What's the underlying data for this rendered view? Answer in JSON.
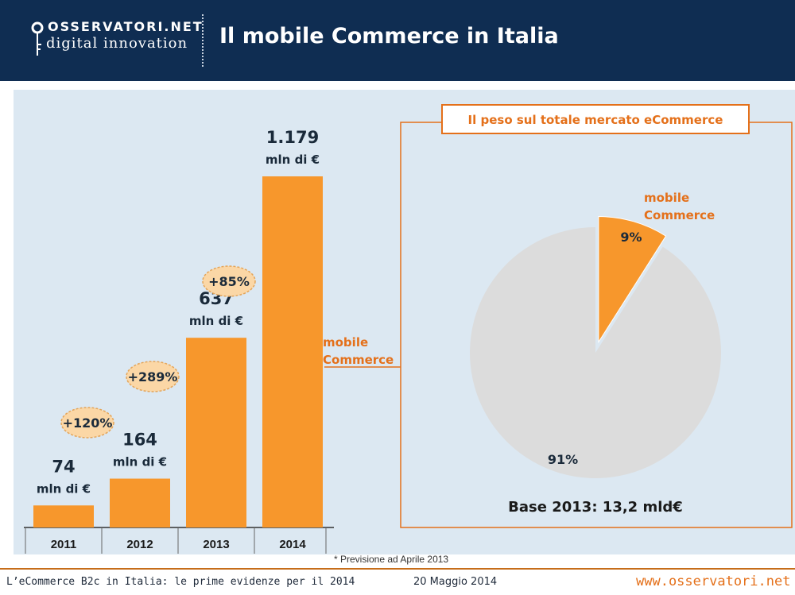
{
  "header": {
    "logo_top": "OSSERVATORI.NET",
    "logo_bottom": "digital innovation",
    "title": "Il mobile Commerce in Italia"
  },
  "colors": {
    "header_bg": "#0f2d52",
    "panel_bg": "#dce8f2",
    "bar": "#f7972c",
    "pie_main": "#dcdcdc",
    "accent": "#e4701a",
    "growth_bubble": "#fbd7a6"
  },
  "chart_data": [
    {
      "type": "bar",
      "categories": [
        "2011",
        "2012",
        "2013",
        "2014"
      ],
      "values": [
        74,
        164,
        637,
        1179
      ],
      "value_labels": [
        "74",
        "164",
        "637",
        "1.179"
      ],
      "unit_label": "mln di €",
      "growth_labels": [
        "+120%",
        "+289%",
        "+85%"
      ],
      "series_label": "mobile Commerce",
      "ylim": [
        0,
        1179
      ]
    },
    {
      "type": "pie",
      "title": "Il peso sul totale mercato eCommerce",
      "slices": [
        {
          "label": "mobile Commerce",
          "value": 9,
          "value_label": "9%"
        },
        {
          "label": "",
          "value": 91,
          "value_label": "91%"
        }
      ],
      "base_label": "Base 2013: 13,2 mld€"
    }
  ],
  "footnote": "* Previsione ad Aprile 2013",
  "footer": {
    "left": "L’eCommerce B2c in Italia: le prime evidenze per il 2014",
    "middle": "20 Maggio 2014",
    "right": "www.osservatori.net"
  }
}
